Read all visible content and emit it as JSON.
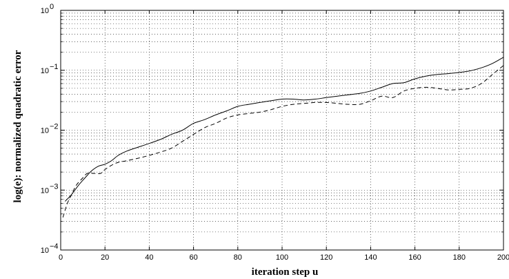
{
  "chart_data": {
    "type": "line",
    "xlabel": "iteration step u",
    "ylabel": "log(e):  normalized quadratic error",
    "xlim": [
      0,
      200
    ],
    "ylim": [
      0.0001,
      1
    ],
    "yscale": "log",
    "grid": true,
    "x_ticks": [
      0,
      20,
      40,
      60,
      80,
      100,
      120,
      140,
      160,
      180,
      200
    ],
    "x_tick_labels": [
      "0",
      "20",
      "40",
      "60",
      "80",
      "100",
      "120",
      "140",
      "160",
      "180",
      "200"
    ],
    "y_ticks": [
      0.0001,
      0.001,
      0.01,
      0.1,
      1
    ],
    "y_tick_labels": [
      {
        "base": "10",
        "exp": "−4"
      },
      {
        "base": "10",
        "exp": "−3"
      },
      {
        "base": "10",
        "exp": "−2"
      },
      {
        "base": "10",
        "exp": "−1"
      },
      {
        "base": "10",
        "exp": "0"
      }
    ],
    "series": [
      {
        "style": "solid",
        "x": [
          2,
          5,
          8,
          11,
          14,
          17,
          20,
          23,
          26,
          30,
          35,
          40,
          45,
          50,
          55,
          60,
          65,
          70,
          75,
          80,
          85,
          90,
          95,
          100,
          105,
          110,
          115,
          120,
          125,
          130,
          135,
          140,
          145,
          150,
          155,
          160,
          165,
          170,
          175,
          180,
          185,
          190,
          195,
          200
        ],
        "y": [
          0.00065,
          0.00085,
          0.0012,
          0.0016,
          0.0021,
          0.0025,
          0.0027,
          0.0031,
          0.0038,
          0.0045,
          0.0052,
          0.006,
          0.007,
          0.0085,
          0.01,
          0.013,
          0.015,
          0.018,
          0.021,
          0.025,
          0.027,
          0.029,
          0.031,
          0.033,
          0.033,
          0.032,
          0.033,
          0.035,
          0.037,
          0.039,
          0.041,
          0.045,
          0.052,
          0.06,
          0.062,
          0.072,
          0.08,
          0.085,
          0.088,
          0.092,
          0.098,
          0.11,
          0.13,
          0.165
        ]
      },
      {
        "style": "dashed",
        "x": [
          1,
          3,
          5,
          7,
          10,
          12,
          15,
          18,
          20,
          23,
          26,
          30,
          35,
          40,
          45,
          50,
          55,
          60,
          65,
          70,
          75,
          80,
          85,
          90,
          95,
          100,
          105,
          110,
          115,
          120,
          125,
          130,
          135,
          140,
          145,
          150,
          155,
          160,
          165,
          170,
          175,
          180,
          185,
          190,
          195,
          200
        ],
        "y": [
          0.00035,
          0.0006,
          0.00085,
          0.0012,
          0.0016,
          0.0019,
          0.0019,
          0.0019,
          0.0022,
          0.0026,
          0.0029,
          0.0031,
          0.0034,
          0.0038,
          0.0043,
          0.005,
          0.0065,
          0.0085,
          0.011,
          0.013,
          0.016,
          0.018,
          0.019,
          0.02,
          0.022,
          0.025,
          0.027,
          0.028,
          0.029,
          0.029,
          0.028,
          0.027,
          0.027,
          0.031,
          0.037,
          0.035,
          0.045,
          0.05,
          0.052,
          0.05,
          0.047,
          0.048,
          0.05,
          0.06,
          0.085,
          0.12
        ]
      }
    ]
  }
}
